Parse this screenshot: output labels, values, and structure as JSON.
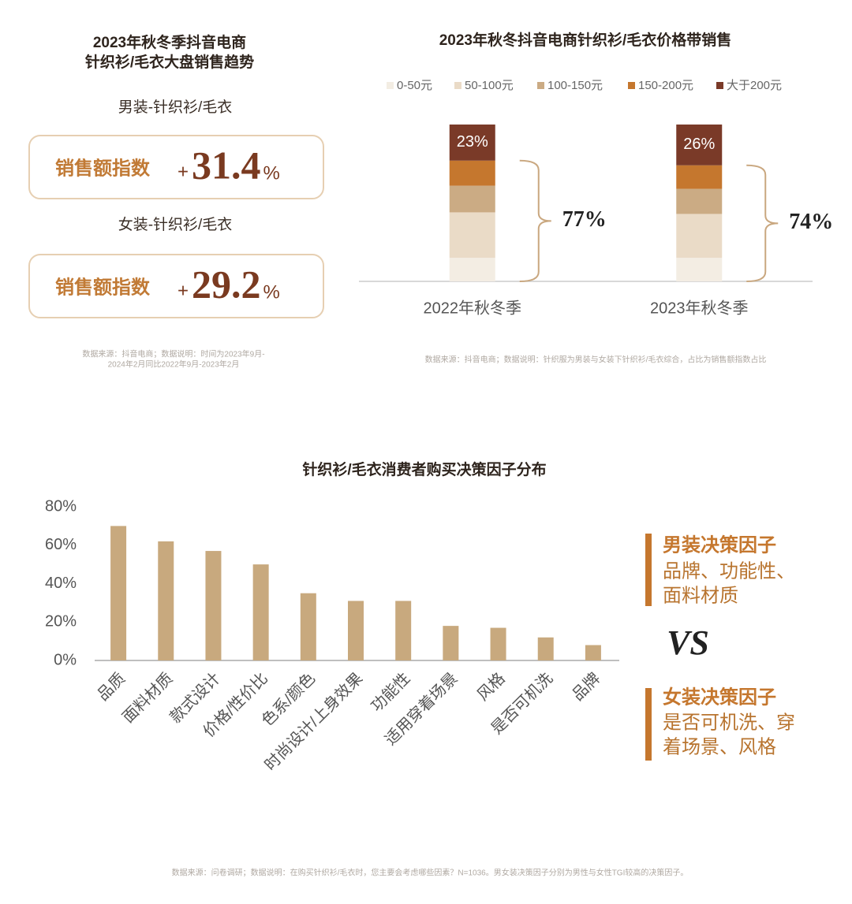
{
  "summary": {
    "title_lines": [
      "2023年秋冬季抖音电商",
      "针织衫/毛衣大盘销售趋势"
    ],
    "cards": [
      {
        "heading": "男装-针织衫/毛衣",
        "label": "销售额指数",
        "sign": "+",
        "value": 31.4,
        "unit": "%"
      },
      {
        "heading": "女装-针织衫/毛衣",
        "label": "销售额指数",
        "sign": "+",
        "value": 29.2,
        "unit": "%"
      }
    ],
    "source_lines": [
      "数据来源：抖音电商；数据说明：时间为2023年9月-",
      "2024年2月同比2022年9月-2023年2月"
    ]
  },
  "chart_data": [
    {
      "type": "stacked_bar",
      "title": "2023年秋冬抖音电商针织衫/毛衣价格带销售",
      "categories": [
        "2022年秋冬季",
        "2023年秋冬季"
      ],
      "ylim": [
        0,
        100
      ],
      "series": [
        {
          "name": "0-50元",
          "color": "#f3ede3",
          "values": [
            15,
            15
          ]
        },
        {
          "name": "50-100元",
          "color": "#eadbc7",
          "values": [
            29,
            28
          ]
        },
        {
          "name": "100-150元",
          "color": "#cbab84",
          "values": [
            17,
            16
          ]
        },
        {
          "name": "150-200元",
          "color": "#c5772e",
          "values": [
            16,
            15
          ]
        },
        {
          "name": "大于200元",
          "color": "#7a3a28",
          "values": [
            23,
            26
          ],
          "value_labels": [
            "23%",
            "26%"
          ]
        }
      ],
      "bracket_labels": [
        "77%",
        "74%"
      ],
      "source": "数据来源：抖音电商；数据说明：针织服为男装与女装下针织衫/毛衣综合，占比为销售额指数占比"
    },
    {
      "type": "bar",
      "title": "针织衫/毛衣消费者购买决策因子分布",
      "categories": [
        "品质",
        "面料材质",
        "款式设计",
        "价格/性价比",
        "色系/颜色",
        "时尚设计/上身效果",
        "功能性",
        "适用穿着场景",
        "风格",
        "是否可机洗",
        "品牌"
      ],
      "values": [
        70,
        62,
        57,
        50,
        35,
        31,
        31,
        18,
        17,
        12,
        8
      ],
      "color": "#c8a97e",
      "ylim": [
        0,
        80
      ],
      "yticks": [
        {
          "value": 0,
          "label": "0%"
        },
        {
          "value": 20,
          "label": "20%"
        },
        {
          "value": 40,
          "label": "40%"
        },
        {
          "value": 60,
          "label": "60%"
        },
        {
          "value": 80,
          "label": "80%"
        }
      ],
      "source": "数据来源：问卷调研；数据说明：在购买针织衫/毛衣时，您主要会考虑哪些因素？N=1036。男女装决策因子分别为男性与女性TGI较高的决策因子。"
    }
  ],
  "factors": {
    "men": {
      "title": "男装决策因子",
      "lines": [
        "品牌、功能性、",
        "面料材质"
      ]
    },
    "vs": "VS",
    "women": {
      "title": "女装决策因子",
      "lines": [
        "是否可机洗、穿",
        "着场景、风格"
      ]
    }
  }
}
